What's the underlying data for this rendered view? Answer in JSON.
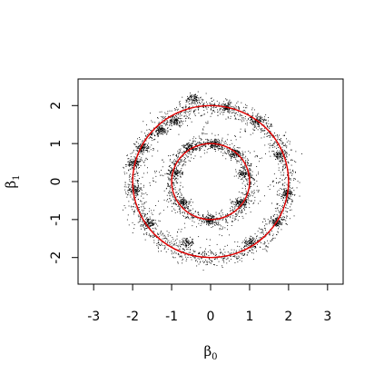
{
  "chart_data": {
    "type": "scatter",
    "title": "",
    "xlabel": "β",
    "xlabel_subscript": "0",
    "ylabel": "β",
    "ylabel_subscript": "1",
    "xlim": [
      -3.4,
      3.4
    ],
    "ylim": [
      -2.7,
      2.7
    ],
    "x_ticks": [
      -3,
      -2,
      -1,
      0,
      1,
      2,
      3
    ],
    "x_tick_labels": [
      "-3",
      "-2",
      "-1",
      "0",
      "1",
      "2",
      "3"
    ],
    "y_ticks": [
      -2,
      -1,
      0,
      1,
      2
    ],
    "y_tick_labels": [
      "-2",
      "-1",
      "0",
      "1",
      "2"
    ],
    "grid": false,
    "legend": "none",
    "point_color": "#000000",
    "curve_color": "#e00000",
    "curves": [
      {
        "type": "circle",
        "center": [
          0,
          0
        ],
        "radius": 2
      },
      {
        "type": "circle",
        "center": [
          0,
          0
        ],
        "radius": 1
      }
    ],
    "point_clusters": [
      {
        "center": [
          0,
          0
        ],
        "radius": 2,
        "spread": 0.13,
        "density": "outer ring"
      },
      {
        "center": [
          0,
          0
        ],
        "radius": 1,
        "spread": 0.1,
        "density": "inner ring"
      }
    ],
    "dense_clumps": [
      [
        -1.95,
        0.5
      ],
      [
        -1.75,
        0.9
      ],
      [
        -1.3,
        1.35
      ],
      [
        -0.9,
        1.6
      ],
      [
        -0.45,
        2.2
      ],
      [
        0.4,
        1.95
      ],
      [
        1.2,
        1.6
      ],
      [
        1.75,
        0.7
      ],
      [
        1.95,
        -0.3
      ],
      [
        1.7,
        -1.05
      ],
      [
        1.0,
        -1.6
      ],
      [
        -0.6,
        -1.6
      ],
      [
        -1.6,
        -1.1
      ],
      [
        -1.95,
        -0.2
      ],
      [
        0.6,
        0.75
      ],
      [
        0.85,
        0.2
      ],
      [
        0.75,
        -0.55
      ],
      [
        -0.05,
        -1.0
      ],
      [
        -0.7,
        -0.55
      ],
      [
        -0.9,
        0.25
      ],
      [
        -0.55,
        0.9
      ],
      [
        0.1,
        1.0
      ]
    ]
  }
}
